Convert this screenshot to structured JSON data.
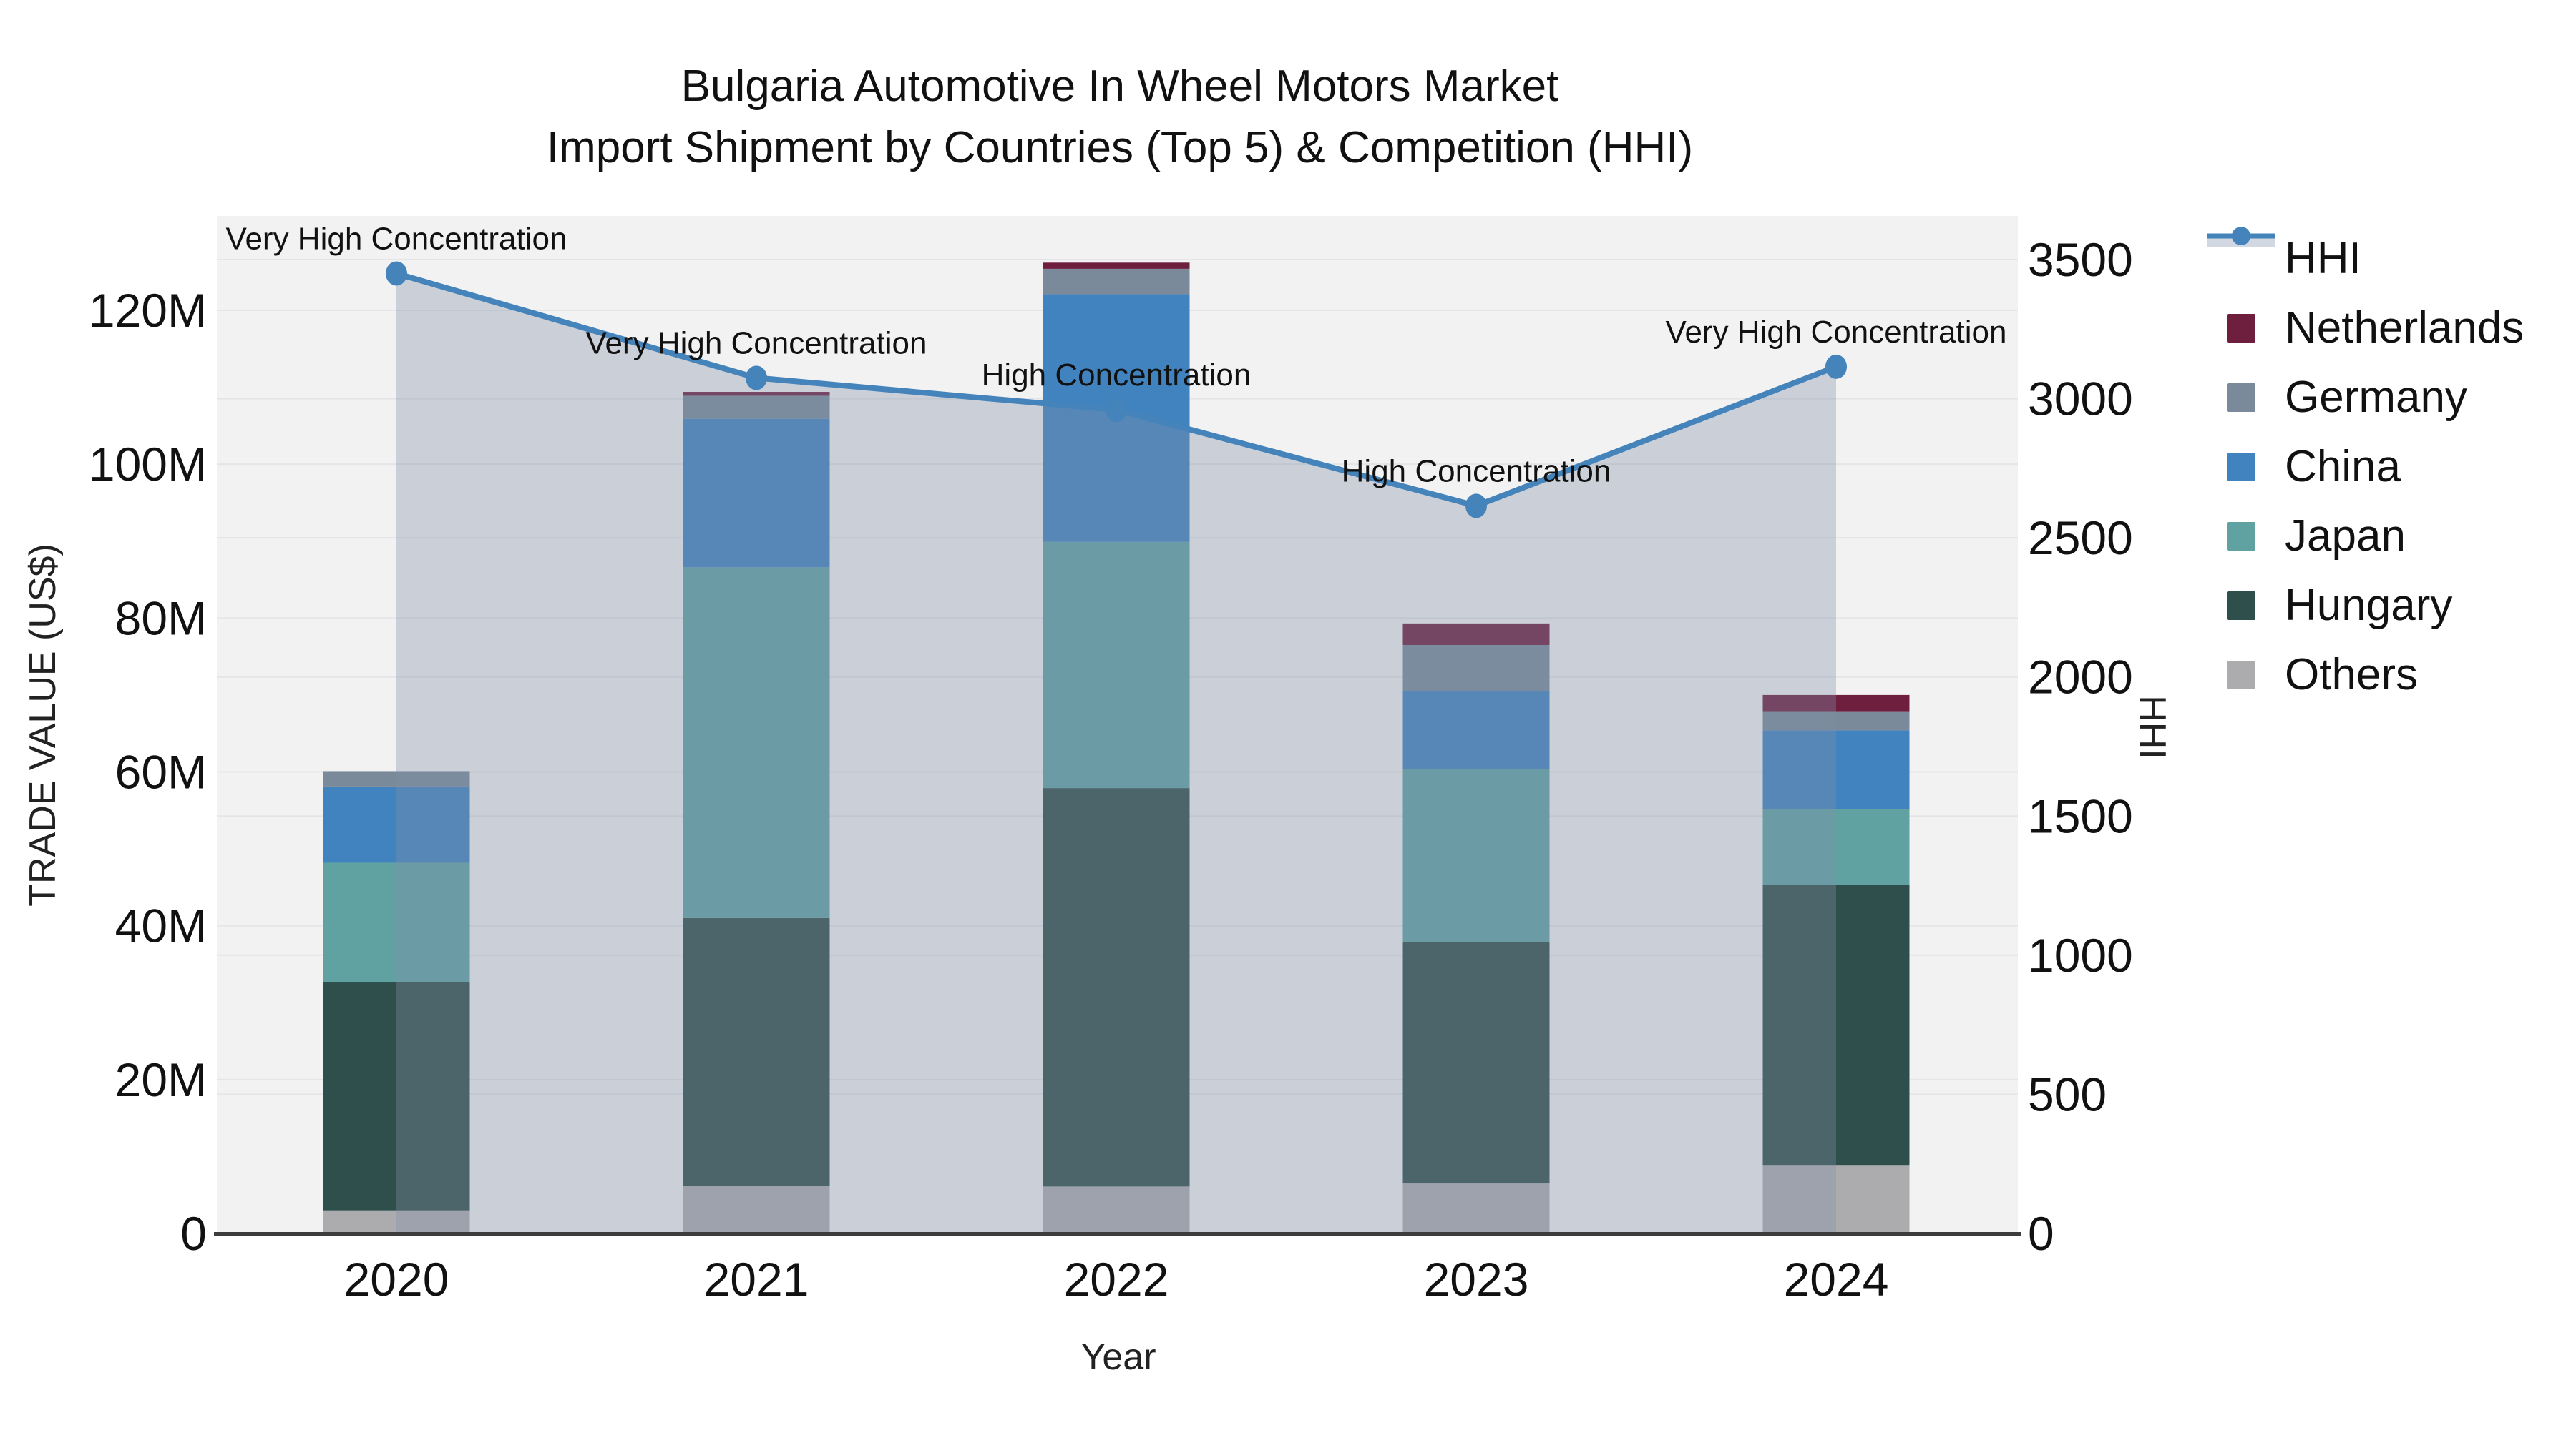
{
  "title": {
    "line1": "Bulgaria Automotive In Wheel Motors Market",
    "line2": "Import Shipment by Countries (Top 5) & Competition (HHI)"
  },
  "axes": {
    "x_title": "Year",
    "y_left_title": "TRADE VALUE (US$)",
    "y_right_title": "HHI",
    "y_left_ticks": [
      {
        "label": "0",
        "value": 0
      },
      {
        "label": "20M",
        "value": 20
      },
      {
        "label": "40M",
        "value": 40
      },
      {
        "label": "60M",
        "value": 60
      },
      {
        "label": "80M",
        "value": 80
      },
      {
        "label": "100M",
        "value": 100
      },
      {
        "label": "120M",
        "value": 120
      }
    ],
    "y_right_ticks": [
      {
        "label": "0",
        "value": 0
      },
      {
        "label": "500",
        "value": 500
      },
      {
        "label": "1000",
        "value": 1000
      },
      {
        "label": "1500",
        "value": 1500
      },
      {
        "label": "2000",
        "value": 2000
      },
      {
        "label": "2500",
        "value": 2500
      },
      {
        "label": "3000",
        "value": 3000
      },
      {
        "label": "3500",
        "value": 3500
      }
    ]
  },
  "colors": {
    "plot_bg": "#f2f2f2",
    "gridline": "#e4e5e7",
    "axis_line": "#3d3d3d",
    "hhi_line": "#4583BB",
    "hhi_area_fill": "#808EA8",
    "hhi_area_opacity": 0.35,
    "legend_band": "#d2d8e2",
    "text": "#111111"
  },
  "chart_data": {
    "type": "bar",
    "subtype": "stacked-bars-with-dual-axis-line",
    "title": "Bulgaria Automotive In Wheel Motors Market — Import Shipment by Countries (Top 5) & Competition (HHI)",
    "xlabel": "Year",
    "ylabel_left": "TRADE VALUE (US$)",
    "ylabel_right": "HHI",
    "categories": [
      "2020",
      "2021",
      "2022",
      "2023",
      "2024"
    ],
    "value_unit": "USD millions",
    "ylim_left": [
      0,
      133
    ],
    "ylim_right": [
      0,
      3675
    ],
    "grid": true,
    "legend_position": "right",
    "series": [
      {
        "name": "Others",
        "color": "#ACACAE",
        "values": [
          3.0,
          6.2,
          6.1,
          6.5,
          8.9
        ]
      },
      {
        "name": "Hungary",
        "color": "#2E4F4B",
        "values": [
          29.7,
          34.8,
          51.8,
          31.4,
          36.4
        ]
      },
      {
        "name": "Japan",
        "color": "#60A1A1",
        "values": [
          15.5,
          45.6,
          32.0,
          22.5,
          9.9
        ]
      },
      {
        "name": "China",
        "color": "#4183BF",
        "values": [
          9.9,
          19.3,
          32.2,
          10.1,
          10.2
        ]
      },
      {
        "name": "Germany",
        "color": "#7A8A9A",
        "values": [
          2.0,
          3.0,
          3.3,
          6.0,
          2.4
        ]
      },
      {
        "name": "Netherlands",
        "color": "#6E1F3E",
        "values": [
          0,
          0.5,
          0.8,
          2.8,
          2.2
        ]
      }
    ],
    "bar_totals": [
      60.1,
      109.4,
      126.2,
      79.3,
      70.0
    ],
    "hhi_series": {
      "name": "HHI",
      "color": "#4583BB",
      "values": [
        3450,
        3075,
        2960,
        2615,
        3115
      ]
    },
    "annotations": [
      {
        "year": "2020",
        "text": "Very High Concentration"
      },
      {
        "year": "2021",
        "text": "Very High Concentration"
      },
      {
        "year": "2022",
        "text": "High Concentration"
      },
      {
        "year": "2023",
        "text": "High Concentration"
      },
      {
        "year": "2024",
        "text": "Very High Concentration"
      }
    ]
  },
  "legend": {
    "items": [
      "HHI",
      "Netherlands",
      "Germany",
      "China",
      "Japan",
      "Hungary",
      "Others"
    ]
  }
}
